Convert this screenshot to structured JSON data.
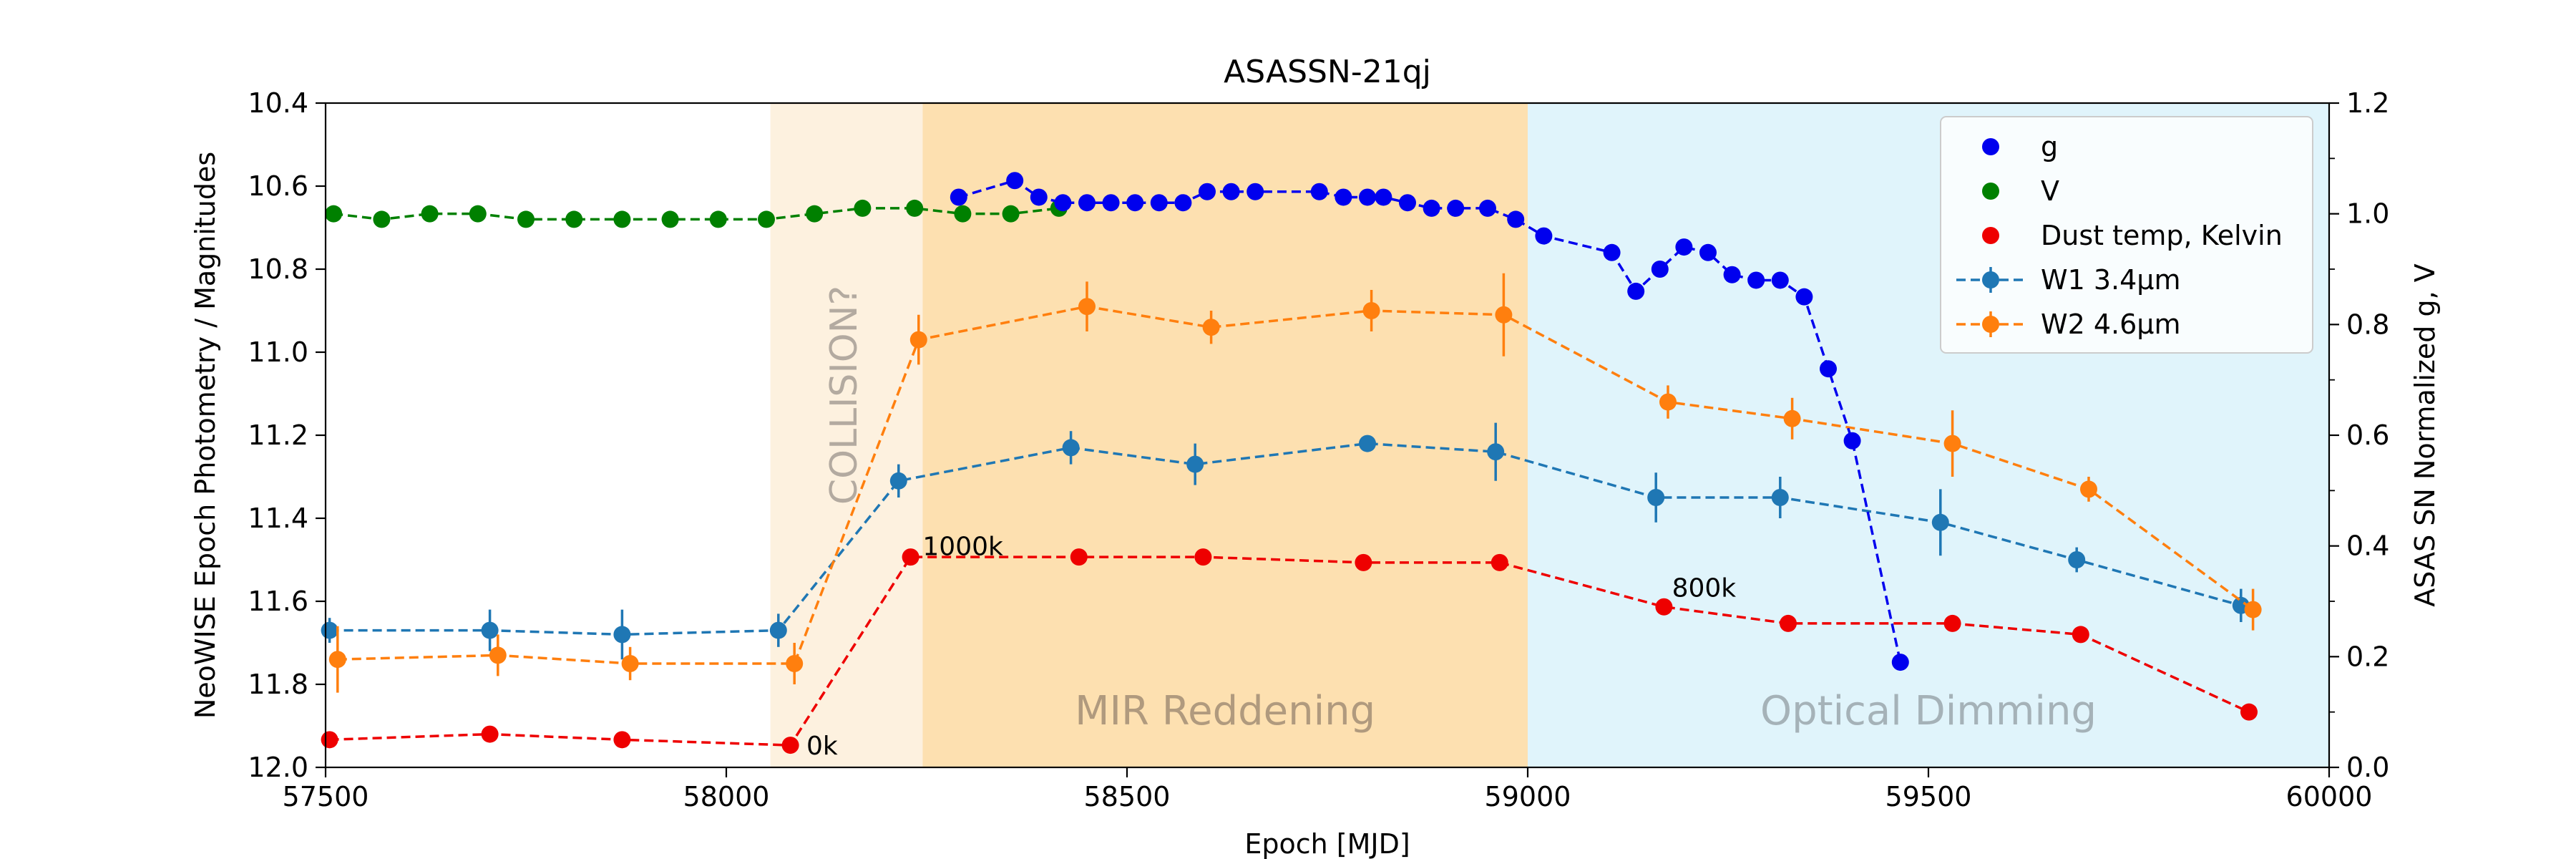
{
  "chart_data": {
    "type": "line",
    "title": "ASASSN-21qj",
    "xlabel": "Epoch [MJD]",
    "ylabel_left": "NeoWISE Epoch Photometry / Magnitudes",
    "ylabel_right": "ASAS SN Normalized g, V",
    "xlim": [
      57500,
      60000
    ],
    "ylim_left": [
      12.0,
      10.4
    ],
    "ylim_right": [
      0.0,
      1.2
    ],
    "x_ticks": [
      "57500",
      "58000",
      "58500",
      "59000",
      "59500",
      "60000"
    ],
    "y_ticks_left": [
      "10.4",
      "10.6",
      "10.8",
      "11.0",
      "11.2",
      "11.4",
      "11.6",
      "11.8",
      "12.0"
    ],
    "y_ticks_right": [
      "0.0",
      "0.2",
      "0.4",
      "0.6",
      "0.8",
      "1.0",
      "1.2"
    ],
    "regions": [
      {
        "x0": 58055,
        "x1": 58245,
        "color": "#fdf1df",
        "label": "COLLISION?",
        "label_color": "#b3aaa0"
      },
      {
        "x0": 58245,
        "x1": 59000,
        "color": "#fde0b0",
        "label": "MIR Reddening",
        "label_color": "#b09a7e"
      },
      {
        "x0": 59000,
        "x1": 60000,
        "color": "#e0f4fb",
        "label": "Optical Dimming",
        "label_color": "#a5b2b8"
      }
    ],
    "series": [
      {
        "name": "g",
        "axis": "right",
        "color": "#0000ee",
        "style": "dashed",
        "errorbars": false,
        "x": [
          58290,
          58360,
          58390,
          58420,
          58450,
          58480,
          58510,
          58540,
          58570,
          58600,
          58630,
          58660,
          58740,
          58770,
          58800,
          58820,
          58850,
          58880,
          58910,
          58950,
          58985,
          59020,
          59105,
          59135,
          59165,
          59195,
          59225,
          59255,
          59285,
          59315,
          59345,
          59375,
          59405,
          59465
        ],
        "y": [
          1.03,
          1.06,
          1.03,
          1.02,
          1.02,
          1.02,
          1.02,
          1.02,
          1.02,
          1.04,
          1.04,
          1.04,
          1.04,
          1.03,
          1.03,
          1.03,
          1.02,
          1.01,
          1.01,
          1.01,
          0.99,
          0.96,
          0.93,
          0.86,
          0.9,
          0.94,
          0.93,
          0.89,
          0.88,
          0.88,
          0.85,
          0.72,
          0.59,
          0.19
        ]
      },
      {
        "name": "V",
        "axis": "right",
        "color": "#008000",
        "style": "dashed",
        "errorbars": false,
        "x": [
          57510,
          57570,
          57630,
          57690,
          57750,
          57810,
          57870,
          57930,
          57990,
          58050,
          58110,
          58170,
          58235,
          58295,
          58355,
          58415
        ],
        "y": [
          1.0,
          0.99,
          1.0,
          1.0,
          0.99,
          0.99,
          0.99,
          0.99,
          0.99,
          0.99,
          1.0,
          1.01,
          1.01,
          1.0,
          1.0,
          1.01
        ]
      },
      {
        "name": "Dust temp, Kelvin",
        "axis": "right",
        "color": "#ee0000",
        "style": "dashed",
        "errorbars": false,
        "x": [
          57505,
          57705,
          57870,
          58080,
          58230,
          58440,
          58595,
          58795,
          58965,
          59170,
          59325,
          59530,
          59690,
          59900
        ],
        "y": [
          0.05,
          0.06,
          0.05,
          0.04,
          0.38,
          0.38,
          0.38,
          0.37,
          0.37,
          0.29,
          0.26,
          0.26,
          0.24,
          0.1
        ]
      },
      {
        "name": "W1 3.4µm",
        "axis": "left",
        "color": "#1f77b4",
        "style": "dashed",
        "errorbars": true,
        "x": [
          57505,
          57705,
          57870,
          58065,
          58215,
          58430,
          58585,
          58800,
          58960,
          59160,
          59315,
          59515,
          59685,
          59890
        ],
        "y": [
          11.67,
          11.67,
          11.68,
          11.67,
          11.31,
          11.23,
          11.27,
          11.22,
          11.24,
          11.35,
          11.35,
          11.41,
          11.5,
          11.61
        ],
        "err": [
          0.03,
          0.05,
          0.06,
          0.04,
          0.04,
          0.04,
          0.05,
          0.02,
          0.07,
          0.06,
          0.05,
          0.08,
          0.03,
          0.04
        ]
      },
      {
        "name": "W2 4.6µm",
        "axis": "left",
        "color": "#ff7f0e",
        "style": "dashed",
        "errorbars": true,
        "x": [
          57515,
          57715,
          57880,
          58085,
          58240,
          58450,
          58605,
          58805,
          58970,
          59175,
          59330,
          59530,
          59700,
          59905
        ],
        "y": [
          11.74,
          11.73,
          11.75,
          11.75,
          10.97,
          10.89,
          10.94,
          10.9,
          10.91,
          11.12,
          11.16,
          11.22,
          11.33,
          11.62
        ],
        "err": [
          0.08,
          0.05,
          0.04,
          0.05,
          0.06,
          0.06,
          0.04,
          0.05,
          0.1,
          0.04,
          0.05,
          0.08,
          0.03,
          0.05
        ]
      }
    ],
    "annotations": [
      {
        "text": "0k",
        "x": 58100,
        "y": 0.04
      },
      {
        "text": "1000k",
        "x": 58245,
        "y": 0.4
      },
      {
        "text": "800k",
        "x": 59180,
        "y": 0.325
      }
    ],
    "legend_position": "top-right",
    "grid": false
  }
}
